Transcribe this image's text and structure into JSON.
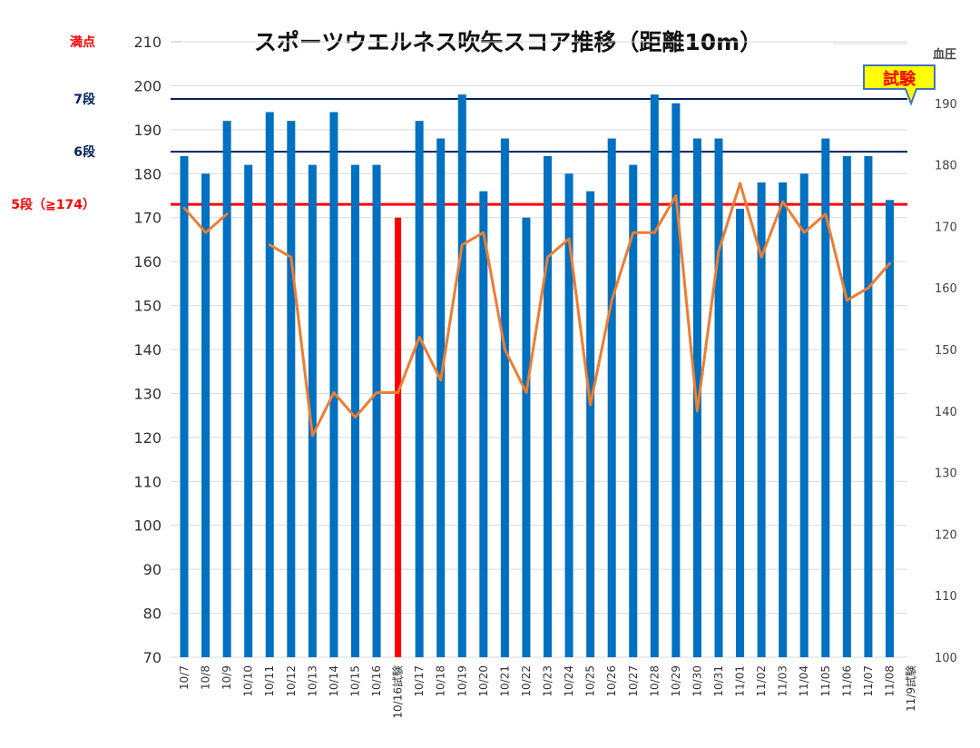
{
  "chart_data": {
    "type": "bar",
    "title": "スポーツウエルネス吹矢スコア推移（距離10m）",
    "categories": [
      "10/7",
      "10/8",
      "10/9",
      "10/10",
      "10/11",
      "10/12",
      "10/13",
      "10/14",
      "10/15",
      "10/16",
      "10/16試験",
      "10/17",
      "10/18",
      "10/19",
      "10/20",
      "10/21",
      "10/22",
      "10/23",
      "10/24",
      "10/25",
      "10/26",
      "10/27",
      "10/28",
      "10/29",
      "10/30",
      "10/31",
      "11/01",
      "11/02",
      "11/03",
      "11/04",
      "11/05",
      "11/06",
      "11/07",
      "11/08",
      "11/9試験"
    ],
    "series": [
      {
        "kind": "bar",
        "axis": "left",
        "values": [
          184,
          180,
          192,
          182,
          194,
          192,
          182,
          194,
          182,
          182,
          170,
          192,
          188,
          198,
          176,
          188,
          170,
          184,
          180,
          176,
          188,
          182,
          198,
          196,
          188,
          188,
          172,
          178,
          178,
          180,
          188,
          184,
          184,
          174,
          null
        ],
        "color": "#0070c0",
        "highlight": {
          "index": 10,
          "color": "#ff0000"
        }
      },
      {
        "kind": "line",
        "axis": "right",
        "values": [
          173,
          169,
          172,
          null,
          167,
          165,
          136,
          143,
          139,
          143,
          143,
          152,
          145,
          167,
          169,
          150,
          143,
          165,
          168,
          141,
          158,
          169,
          169,
          175,
          140,
          166,
          177,
          165,
          174,
          169,
          172,
          158,
          160,
          164,
          null
        ],
        "color": "#ed7d31"
      }
    ],
    "yaxis": {
      "min": 70,
      "max": 210,
      "step": 10,
      "ticks": [
        70,
        80,
        90,
        100,
        110,
        120,
        130,
        140,
        150,
        160,
        170,
        180,
        190,
        200,
        210
      ]
    },
    "y2axis": {
      "min": 100,
      "max": 200,
      "step": 10,
      "label": "血圧",
      "ticks": [
        100,
        110,
        120,
        130,
        140,
        150,
        160,
        170,
        180,
        190
      ]
    },
    "reference_lines": [
      {
        "label": "満点",
        "value": 210,
        "color": "#ff0000",
        "line": false
      },
      {
        "label": "7段",
        "value": 197,
        "color": "#002060",
        "line": true
      },
      {
        "label": "6段",
        "value": 185,
        "color": "#002060",
        "line": true
      },
      {
        "label": "5段（≧174）",
        "value": 173,
        "color": "#ff0000",
        "line": true
      }
    ],
    "callout": {
      "label": "試験",
      "bg": "#ffff00",
      "text_color": "#ff0000",
      "border": "#4472c4"
    },
    "grid": true,
    "legend": "none"
  }
}
